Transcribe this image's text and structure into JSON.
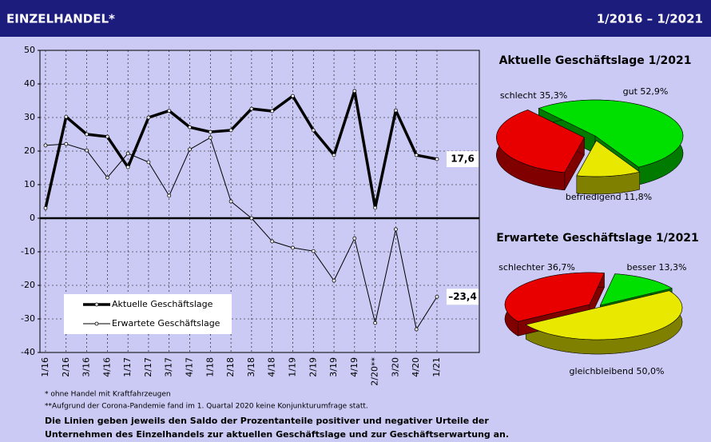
{
  "header": {
    "title": "EINZELHANDEL*",
    "period": "1/2016 – 1/2021"
  },
  "chart_data": [
    {
      "type": "line",
      "categories": [
        "1/16",
        "2/16",
        "3/16",
        "4/16",
        "1/17",
        "2/17",
        "3/17",
        "4/17",
        "1/18",
        "2/18",
        "3/18",
        "4/18",
        "1/19",
        "2/19",
        "3/19",
        "4/19",
        "2/20**",
        "3/20",
        "4/20",
        "1/21"
      ],
      "series": [
        {
          "name": "Aktuelle Geschäftslage",
          "color": "#000000",
          "values": [
            3,
            30.2,
            25,
            24.3,
            15.2,
            30,
            32,
            27.1,
            25.7,
            26.2,
            32.6,
            31.9,
            36.4,
            26.2,
            18.8,
            37.9,
            3.1,
            32.1,
            18.8,
            17.6
          ],
          "value_labels": [
            null,
            null,
            null,
            null,
            null,
            null,
            null,
            null,
            null,
            null,
            null,
            null,
            null,
            null,
            null,
            null,
            null,
            null,
            null,
            "17,6"
          ]
        },
        {
          "name": "Erwartete Geschäftslage",
          "color": "#000000",
          "values": [
            21.7,
            22.1,
            20.2,
            12.1,
            19.3,
            16.7,
            6.7,
            20.5,
            24,
            5,
            0,
            -6.9,
            -8.8,
            -9.8,
            -18.6,
            -6,
            -31.2,
            -3.3,
            -33.1,
            -23.4
          ],
          "value_labels": [
            null,
            null,
            null,
            null,
            null,
            null,
            null,
            null,
            null,
            null,
            null,
            null,
            null,
            null,
            null,
            null,
            null,
            null,
            null,
            "–23,4"
          ]
        }
      ],
      "ylim": [
        -40,
        50
      ],
      "yticks": [
        -40,
        -30,
        -20,
        -10,
        0,
        10,
        20,
        30,
        40,
        50
      ],
      "grid": true
    },
    {
      "type": "pie",
      "title": "Aktuelle Geschäftslage 1/2021",
      "categories": [
        "gut",
        "befriedigend",
        "schlecht"
      ],
      "values": [
        52.9,
        11.8,
        35.3
      ],
      "value_labels": [
        "52,9%",
        "11,8%",
        "35,3%"
      ],
      "colors": [
        "#00e000",
        "#e8e800",
        "#e80000"
      ]
    },
    {
      "type": "pie",
      "title": "Erwartete Geschäftslage 1/2021",
      "categories": [
        "besser",
        "gleichbleibend",
        "schlechter"
      ],
      "values": [
        13.3,
        50,
        36.7
      ],
      "value_labels": [
        "13,3%",
        "50,0%",
        "36,7%"
      ],
      "colors": [
        "#00e000",
        "#e8e800",
        "#e80000"
      ]
    }
  ],
  "footnotes": [
    "* ohne Handel mit Kraftfahrzeugen",
    "**Aufgrund der Corona-Pandemie  fand im 1. Quartal 2020 keine Konjunkturumfrage statt."
  ],
  "note": [
    "Die Linien geben jeweils den Saldo der Prozentanteile positiver und negativer Urteile der",
    "Unternehmen des Einzelhandels zur aktuellen Geschäftslage und zur Geschäftserwartung an."
  ]
}
